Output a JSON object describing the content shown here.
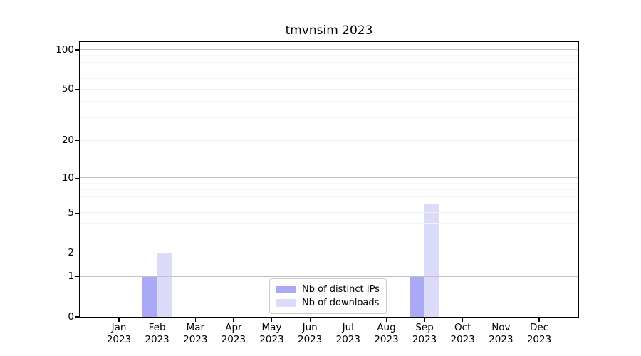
{
  "chart_data": {
    "type": "bar",
    "title": "tmvnsim 2023",
    "year": "2023",
    "months": [
      "Jan",
      "Feb",
      "Mar",
      "Apr",
      "May",
      "Jun",
      "Jul",
      "Aug",
      "Sep",
      "Oct",
      "Nov",
      "Dec"
    ],
    "categories": [
      "Jan 2023",
      "Feb 2023",
      "Mar 2023",
      "Apr 2023",
      "May 2023",
      "Jun 2023",
      "Jul 2023",
      "Aug 2023",
      "Sep 2023",
      "Oct 2023",
      "Nov 2023",
      "Dec 2023"
    ],
    "series": [
      {
        "name": "Nb of distinct IPs",
        "color": "#a9a9f6",
        "values": [
          0,
          1,
          0,
          0,
          0,
          0,
          0,
          0,
          1,
          0,
          0,
          0
        ]
      },
      {
        "name": "Nb of downloads",
        "color": "#dcdcfa",
        "values": [
          0,
          2,
          0,
          0,
          0,
          0,
          0,
          0,
          6,
          0,
          0,
          0
        ]
      }
    ],
    "yscale": "log1p",
    "ylim": [
      0,
      115
    ],
    "yticks": [
      0,
      1,
      2,
      5,
      10,
      20,
      50,
      100
    ],
    "minor_gridlines": [
      3,
      4,
      6,
      7,
      8,
      9,
      30,
      40,
      60,
      70,
      80,
      90
    ],
    "grid": "on",
    "legend_position": "lower center",
    "colors": {
      "axis": "#000000",
      "grid_decade": "#c2c2c2",
      "grid_major": "#ececec",
      "grid_minor": "#f4f4f4",
      "legend_border": "#cccccc",
      "background": "#ffffff",
      "text": "#000000"
    }
  }
}
